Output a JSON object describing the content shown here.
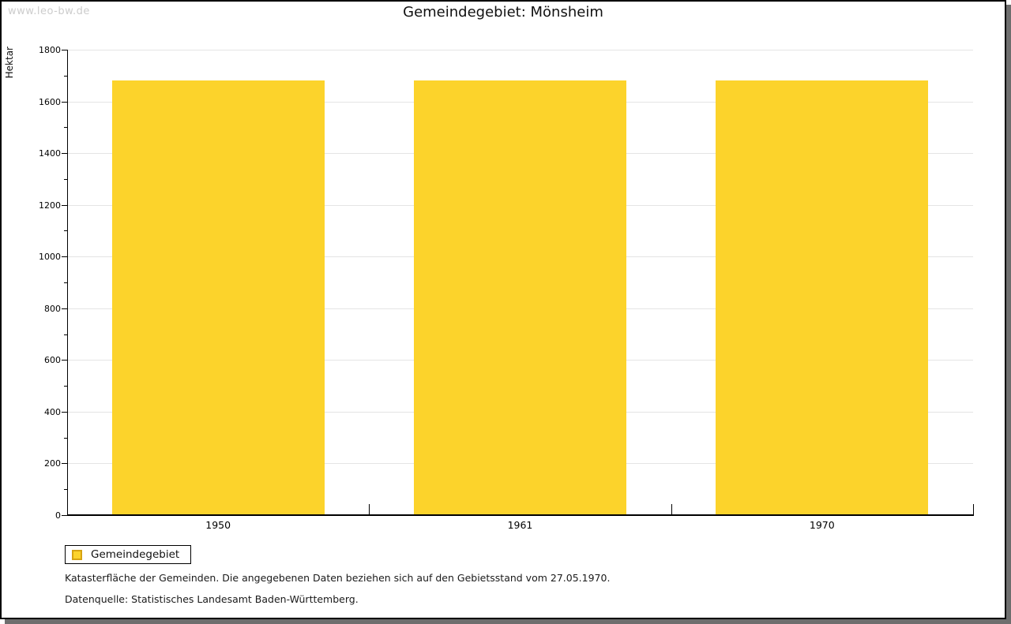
{
  "watermark": "www.leo-bw.de",
  "chart_data": {
    "type": "bar",
    "title": "Gemeindegebiet: Mönsheim",
    "ylabel": "Hektar",
    "xlabel": "",
    "categories": [
      "1950",
      "1961",
      "1970"
    ],
    "values": [
      1680,
      1680,
      1680
    ],
    "ylim": [
      0,
      1800
    ],
    "ytick_major": 200,
    "ytick_minor": 100,
    "grid": "horizontal-major",
    "legend_position": "bottom-left",
    "bar_color": "#FCD32B",
    "gridline_color": "#E4E4E4",
    "axis_color": "#000000"
  },
  "legend": {
    "label": "Gemeindegebiet",
    "swatch_color": "#FCD32B",
    "swatch_border_color": "#D6A312"
  },
  "footer": {
    "line1": "Katasterfläche der Gemeinden. Die angegebenen Daten beziehen sich auf den Gebietsstand vom 27.05.1970.",
    "line2": "Datenquelle: Statistisches Landesamt Baden-Württemberg."
  }
}
